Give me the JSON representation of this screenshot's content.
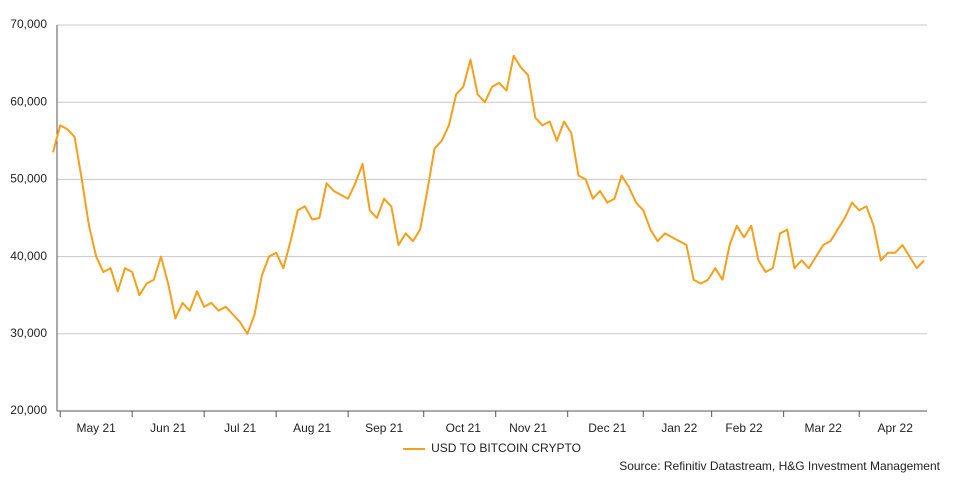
{
  "chart_data": {
    "type": "line",
    "categories": [
      null,
      null,
      null,
      null,
      null,
      null,
      "May 21",
      null,
      null,
      null,
      null,
      null,
      null,
      null,
      null,
      null,
      "Jun 21",
      null,
      null,
      null,
      null,
      null,
      null,
      null,
      null,
      null,
      "Jul 21",
      null,
      null,
      null,
      null,
      null,
      null,
      null,
      null,
      null,
      "Aug 21",
      null,
      null,
      null,
      null,
      null,
      null,
      null,
      null,
      null,
      "Sep 21",
      null,
      null,
      null,
      null,
      null,
      null,
      null,
      null,
      null,
      null,
      "Oct 21",
      null,
      null,
      null,
      null,
      null,
      null,
      null,
      null,
      "Nov 21",
      null,
      null,
      null,
      null,
      null,
      null,
      null,
      null,
      null,
      null,
      "Dec 21",
      null,
      null,
      null,
      null,
      null,
      null,
      null,
      null,
      null,
      "Jan 22",
      null,
      null,
      null,
      null,
      null,
      null,
      null,
      null,
      "Feb 22",
      null,
      null,
      null,
      null,
      null,
      null,
      null,
      null,
      null,
      null,
      "Mar 22",
      null,
      null,
      null,
      null,
      null,
      null,
      null,
      null,
      null,
      "Apr 22",
      null,
      null,
      null,
      null
    ],
    "series": [
      {
        "name": "USD TO BITCOIN CRYPTO",
        "color": "#f5a01a",
        "values": [
          53500,
          57000,
          56500,
          55500,
          50000,
          44000,
          40000,
          38000,
          38500,
          35500,
          38500,
          38000,
          35000,
          36500,
          37000,
          40000,
          36500,
          32000,
          34000,
          33000,
          35500,
          33500,
          34000,
          33000,
          33500,
          32500,
          31500,
          30000,
          32500,
          37500,
          40000,
          40500,
          38500,
          42000,
          46000,
          46500,
          44800,
          45000,
          49500,
          48500,
          48000,
          47500,
          49500,
          52000,
          46000,
          45000,
          47500,
          46500,
          41500,
          43000,
          42000,
          43500,
          48500,
          54000,
          55000,
          57000,
          61000,
          62000,
          65500,
          61000,
          60000,
          62000,
          62500,
          61500,
          66000,
          64500,
          63500,
          58000,
          57000,
          57500,
          55000,
          57500,
          56000,
          50500,
          50000,
          47500,
          48500,
          47000,
          47500,
          50500,
          49000,
          47000,
          46000,
          43500,
          42000,
          43000,
          42500,
          42000,
          41500,
          37000,
          36500,
          37000,
          38500,
          37000,
          41500,
          44000,
          42500,
          44000,
          39500,
          38000,
          38500,
          43000,
          43500,
          38500,
          39500,
          38500,
          40000,
          41500,
          42000,
          43500,
          45000,
          47000,
          46000,
          46500,
          44000,
          39500,
          40500,
          40500,
          41500,
          40000,
          38500,
          39500
        ]
      }
    ],
    "ylim": [
      20000,
      70000
    ],
    "yticks": [
      {
        "value": 20000,
        "label": "20,000"
      },
      {
        "value": 30000,
        "label": "30,000"
      },
      {
        "value": 40000,
        "label": "40,000"
      },
      {
        "value": 50000,
        "label": "50,000"
      },
      {
        "value": 60000,
        "label": "60,000"
      },
      {
        "value": 70000,
        "label": "70,000"
      }
    ],
    "grid": true,
    "legend": "bottom",
    "source": "Source: Refinitiv Datastream, H&G Investment Management"
  }
}
